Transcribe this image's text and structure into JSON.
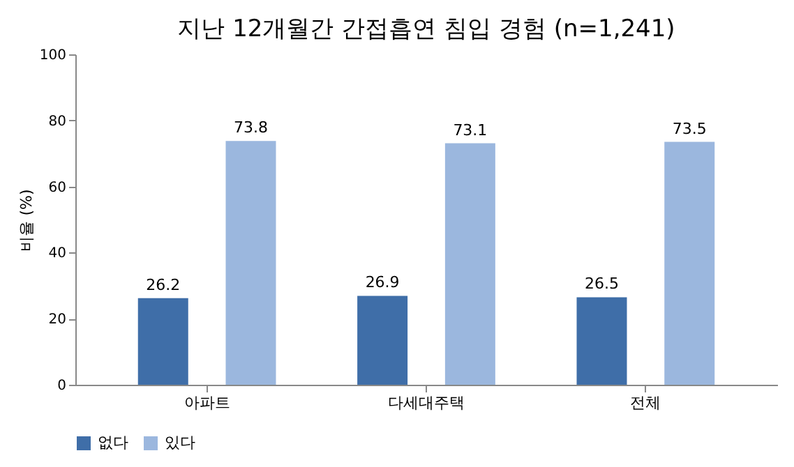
{
  "chart_data": {
    "type": "bar",
    "title": "지난 12개월간 간접흡연 침입 경험 (n=1,241)",
    "ylabel": "비율 (%)",
    "categories": [
      "아파트",
      "다세대주택",
      "전체"
    ],
    "series": [
      {
        "name": "없다",
        "color": "#3f6ea8",
        "values": [
          26.2,
          26.9,
          26.5
        ]
      },
      {
        "name": "있다",
        "color": "#9bb7de",
        "values": [
          73.8,
          73.1,
          73.5
        ]
      }
    ],
    "ylim": [
      0,
      100
    ],
    "yticks": [
      0,
      20,
      40,
      60,
      80,
      100
    ],
    "grid": false,
    "legend": "bottom",
    "data_labels": true
  }
}
